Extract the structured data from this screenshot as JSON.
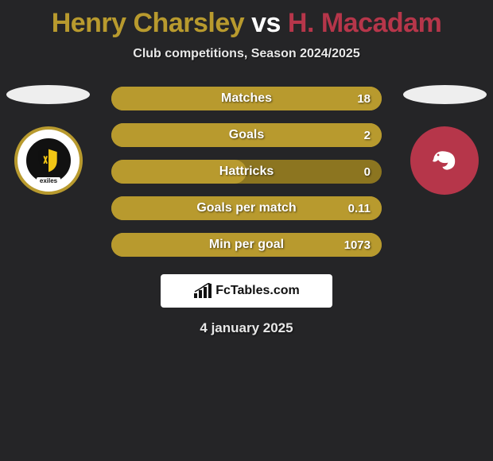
{
  "title": {
    "player1": "Henry Charsley",
    "vs": "vs",
    "player2": "H. Macadam",
    "player1_color": "#b89a2e",
    "vs_color": "#ffffff",
    "player2_color": "#b6364a"
  },
  "subtitle": "Club competitions, Season 2024/2025",
  "ellipse_left_color": "#eeeeee",
  "ellipse_right_color": "#eeeeee",
  "badge_left": {
    "ring_color": "#b89a2e",
    "inner_bg": "#111111",
    "shield_fill": "#f2c615",
    "text": "exiles"
  },
  "badge_right": {
    "bg": "#b6364a",
    "shrimp_color": "#ffffff"
  },
  "bars": [
    {
      "label": "Matches",
      "value": "18",
      "fill_pct": 100,
      "fill_color": "#b89a2e",
      "track_color": "#b89a2e"
    },
    {
      "label": "Goals",
      "value": "2",
      "fill_pct": 100,
      "fill_color": "#b89a2e",
      "track_color": "#b89a2e"
    },
    {
      "label": "Hattricks",
      "value": "0",
      "fill_pct": 50,
      "fill_color": "#b89a2e",
      "track_color": "#8c7520"
    },
    {
      "label": "Goals per match",
      "value": "0.11",
      "fill_pct": 100,
      "fill_color": "#b89a2e",
      "track_color": "#b89a2e"
    },
    {
      "label": "Min per goal",
      "value": "1073",
      "fill_pct": 100,
      "fill_color": "#b89a2e",
      "track_color": "#b89a2e"
    }
  ],
  "attribution": "FcTables.com",
  "date": "4 january 2025",
  "background_color": "#252527",
  "text_color": "#ffffff"
}
